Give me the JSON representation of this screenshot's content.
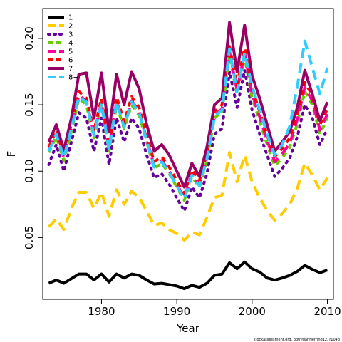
{
  "chart_data": {
    "type": "line",
    "xlabel": "Year",
    "ylabel": "F",
    "xlim": [
      1972.2,
      2010.8
    ],
    "ylim": [
      0.0035,
      0.2225
    ],
    "xticks": [
      1980,
      1990,
      2000,
      2010
    ],
    "yticks": [
      0.05,
      0.1,
      0.15,
      0.2
    ],
    "ytick_labels": [
      "0.05",
      "0.10",
      "0.15",
      "0.20"
    ],
    "legend_position": "top-left",
    "credit": "stockassessment.org, BothnianHerring12, r1048",
    "x": [
      1973,
      1974,
      1975,
      1976,
      1977,
      1978,
      1979,
      1980,
      1981,
      1982,
      1983,
      1984,
      1985,
      1986,
      1987,
      1988,
      1989,
      1990,
      1991,
      1992,
      1993,
      1994,
      1995,
      1996,
      1997,
      1998,
      1999,
      2000,
      2001,
      2002,
      2003,
      2004,
      2005,
      2006,
      2007,
      2008,
      2009,
      2010
    ],
    "series": [
      {
        "name": "1",
        "color": "#000000",
        "dash": "solid",
        "values": [
          0.0155,
          0.018,
          0.0155,
          0.019,
          0.0225,
          0.0225,
          0.018,
          0.0225,
          0.0165,
          0.0225,
          0.0195,
          0.0225,
          0.0215,
          0.018,
          0.015,
          0.0155,
          0.0145,
          0.0135,
          0.0115,
          0.014,
          0.0125,
          0.0155,
          0.0215,
          0.0225,
          0.031,
          0.0265,
          0.0315,
          0.0265,
          0.024,
          0.0195,
          0.018,
          0.0195,
          0.0215,
          0.0245,
          0.029,
          0.026,
          0.0235,
          0.0255
        ]
      },
      {
        "name": "2",
        "color": "#ffcc00",
        "dash": "long",
        "values": [
          0.058,
          0.064,
          0.056,
          0.072,
          0.084,
          0.084,
          0.072,
          0.084,
          0.066,
          0.086,
          0.075,
          0.085,
          0.08,
          0.07,
          0.059,
          0.061,
          0.056,
          0.053,
          0.048,
          0.054,
          0.052,
          0.065,
          0.08,
          0.082,
          0.114,
          0.092,
          0.112,
          0.092,
          0.08,
          0.07,
          0.063,
          0.068,
          0.075,
          0.087,
          0.106,
          0.097,
          0.086,
          0.095
        ]
      },
      {
        "name": "3",
        "color": "#660099",
        "dash": "dotted",
        "values": [
          0.105,
          0.12,
          0.1,
          0.122,
          0.144,
          0.14,
          0.115,
          0.14,
          0.105,
          0.14,
          0.122,
          0.14,
          0.132,
          0.112,
          0.095,
          0.098,
          0.09,
          0.08,
          0.07,
          0.088,
          0.08,
          0.098,
          0.128,
          0.132,
          0.175,
          0.148,
          0.176,
          0.146,
          0.128,
          0.112,
          0.096,
          0.102,
          0.11,
          0.126,
          0.15,
          0.14,
          0.12,
          0.132
        ]
      },
      {
        "name": "4",
        "color": "#66cc00",
        "dash": "dashed",
        "values": [
          0.114,
          0.126,
          0.108,
          0.13,
          0.155,
          0.15,
          0.125,
          0.15,
          0.115,
          0.15,
          0.132,
          0.15,
          0.142,
          0.122,
          0.102,
          0.106,
          0.098,
          0.088,
          0.078,
          0.096,
          0.088,
          0.108,
          0.14,
          0.145,
          0.187,
          0.158,
          0.186,
          0.155,
          0.138,
          0.12,
          0.104,
          0.11,
          0.118,
          0.136,
          0.16,
          0.15,
          0.128,
          0.14
        ]
      },
      {
        "name": "5",
        "color": "#ff0099",
        "dash": "long",
        "values": [
          0.116,
          0.128,
          0.11,
          0.133,
          0.157,
          0.153,
          0.128,
          0.152,
          0.117,
          0.153,
          0.134,
          0.153,
          0.145,
          0.124,
          0.104,
          0.108,
          0.1,
          0.09,
          0.08,
          0.098,
          0.09,
          0.11,
          0.142,
          0.147,
          0.19,
          0.161,
          0.189,
          0.158,
          0.141,
          0.123,
          0.107,
          0.113,
          0.121,
          0.139,
          0.163,
          0.153,
          0.131,
          0.143
        ]
      },
      {
        "name": "6",
        "color": "#ff0000",
        "dash": "dashed",
        "values": [
          0.118,
          0.131,
          0.112,
          0.136,
          0.16,
          0.155,
          0.13,
          0.155,
          0.119,
          0.156,
          0.137,
          0.156,
          0.148,
          0.127,
          0.107,
          0.111,
          0.103,
          0.093,
          0.083,
          0.101,
          0.093,
          0.113,
          0.145,
          0.15,
          0.194,
          0.165,
          0.193,
          0.162,
          0.145,
          0.127,
          0.111,
          0.117,
          0.125,
          0.143,
          0.167,
          0.157,
          0.135,
          0.147
        ]
      },
      {
        "name": "7",
        "color": "#990066",
        "dash": "solid",
        "values": [
          0.122,
          0.135,
          0.116,
          0.14,
          0.173,
          0.174,
          0.14,
          0.174,
          0.13,
          0.173,
          0.15,
          0.175,
          0.162,
          0.135,
          0.115,
          0.12,
          0.112,
          0.1,
          0.088,
          0.106,
          0.096,
          0.118,
          0.15,
          0.155,
          0.212,
          0.175,
          0.21,
          0.172,
          0.155,
          0.135,
          0.115,
          0.122,
          0.13,
          0.148,
          0.176,
          0.158,
          0.138,
          0.152
        ]
      },
      {
        "name": "8+",
        "color": "#33ccff",
        "dash": "long",
        "values": [
          0.115,
          0.128,
          0.11,
          0.132,
          0.156,
          0.152,
          0.127,
          0.151,
          0.116,
          0.152,
          0.133,
          0.152,
          0.144,
          0.123,
          0.103,
          0.107,
          0.099,
          0.089,
          0.079,
          0.097,
          0.089,
          0.109,
          0.141,
          0.146,
          0.192,
          0.16,
          0.189,
          0.164,
          0.146,
          0.128,
          0.112,
          0.12,
          0.134,
          0.164,
          0.198,
          0.178,
          0.158,
          0.178
        ]
      }
    ]
  }
}
